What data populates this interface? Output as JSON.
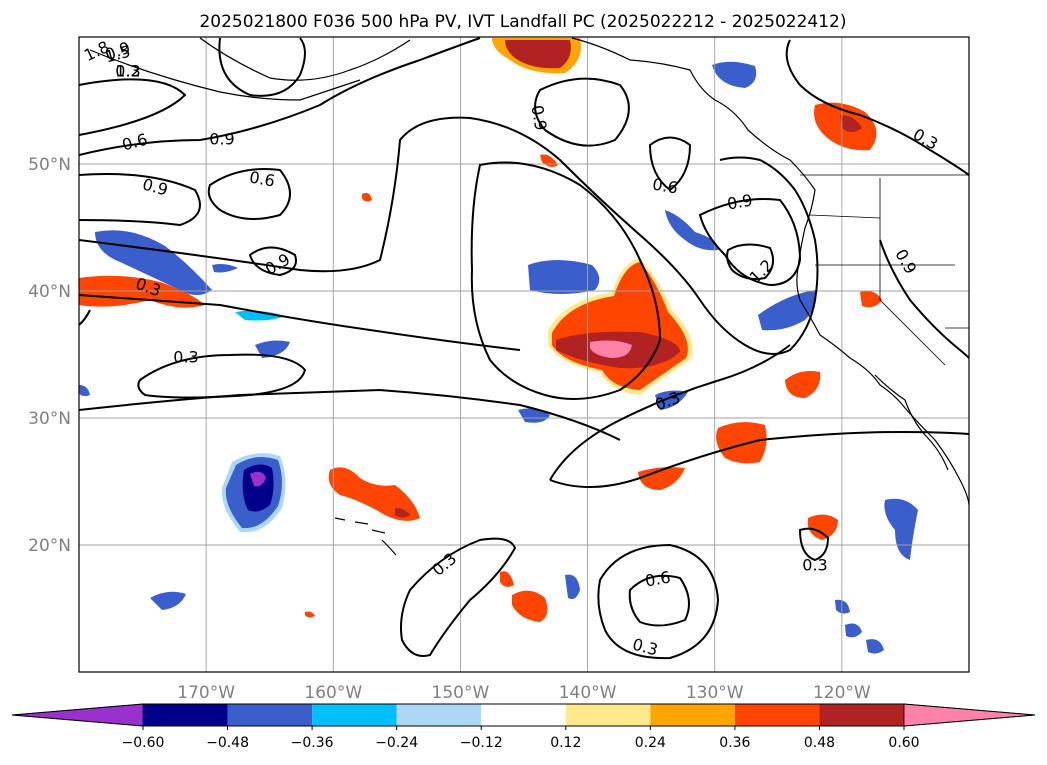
{
  "title": "2025021800 F036 500 hPa PV, IVT Landfall PC (2025022212 - 2025022412)",
  "map": {
    "projection": "plate-carree",
    "lon_range": [
      -180,
      -110
    ],
    "lat_range": [
      10,
      60
    ],
    "lat_ticks": [
      {
        "value": 50,
        "label": "50°N"
      },
      {
        "value": 40,
        "label": "40°N"
      },
      {
        "value": 30,
        "label": "30°N"
      },
      {
        "value": 20,
        "label": "20°N"
      }
    ],
    "lon_ticks": [
      {
        "value": -170,
        "label": "170°W"
      },
      {
        "value": -160,
        "label": "160°W"
      },
      {
        "value": -150,
        "label": "150°W"
      },
      {
        "value": -140,
        "label": "140°W"
      },
      {
        "value": -130,
        "label": "130°W"
      },
      {
        "value": -120,
        "label": "120°W"
      }
    ],
    "grid": true
  },
  "contour_labels": [
    "1.8",
    "1.5",
    "1.2",
    "0.9",
    "0.6",
    "0.9",
    "0.6",
    "0.9",
    "0.9",
    "0.6",
    "0.9",
    "0.9",
    "1.2",
    "0.3",
    "0.3",
    "0.3",
    "0.3",
    "0.3",
    "0.3",
    "0.3",
    "0.6",
    "0.9",
    "0.3"
  ],
  "colorbar": {
    "extend": "both",
    "colors": [
      "#9932cc",
      "#00008b",
      "#3a5fcd",
      "#00bfff",
      "#add8f5",
      "#ffffff",
      "#ffe98c",
      "#ffa500",
      "#ff4500",
      "#b22222",
      "#ff82ab"
    ],
    "tick_labels": [
      "−0.60",
      "−0.48",
      "−0.36",
      "−0.24",
      "−0.12",
      "0.12",
      "0.24",
      "0.36",
      "0.48",
      "0.60"
    ]
  }
}
